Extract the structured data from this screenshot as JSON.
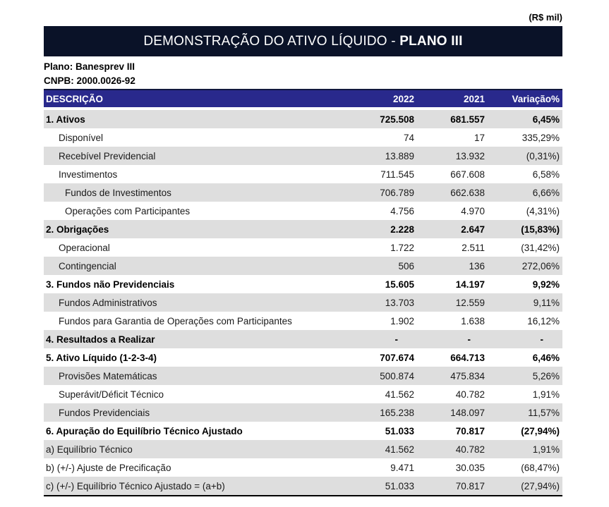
{
  "unit_label": "(R$ mil)",
  "title": {
    "prefix": "DEMONSTRAÇÃO DO ATIVO LÍQUIDO - ",
    "bold": "PLANO III"
  },
  "plan_info": {
    "plan_line": "Plano: Banesprev III",
    "cnpb_line": "CNPB: 2000.0026-92"
  },
  "colors": {
    "title_bar_bg": "#0A1228",
    "column_header_bg": "#29298C",
    "column_header_top_border": "#10173D",
    "alt_row_bg": "#DEDEDE",
    "header_text": "#FFFFFF",
    "body_text": "#1A1A1A",
    "bottom_border": "#000000"
  },
  "table": {
    "columns": [
      "DESCRIÇÃO",
      "2022",
      "2021",
      "Variação%"
    ],
    "rows": [
      {
        "label": "1. Ativos",
        "v2022": "725.508",
        "v2021": "681.557",
        "variation": "6,45%",
        "bold": true,
        "indent": 0
      },
      {
        "label": "Disponível",
        "v2022": "74",
        "v2021": "17",
        "variation": "335,29%",
        "bold": false,
        "indent": 1
      },
      {
        "label": "Recebível Previdencial",
        "v2022": "13.889",
        "v2021": "13.932",
        "variation": "(0,31%)",
        "bold": false,
        "indent": 1
      },
      {
        "label": "Investimentos",
        "v2022": "711.545",
        "v2021": "667.608",
        "variation": "6,58%",
        "bold": false,
        "indent": 1
      },
      {
        "label": "Fundos de Investimentos",
        "v2022": "706.789",
        "v2021": "662.638",
        "variation": "6,66%",
        "bold": false,
        "indent": 2
      },
      {
        "label": "Operações com Participantes",
        "v2022": "4.756",
        "v2021": "4.970",
        "variation": "(4,31%)",
        "bold": false,
        "indent": 2
      },
      {
        "label": "2. Obrigações",
        "v2022": "2.228",
        "v2021": "2.647",
        "variation": "(15,83%)",
        "bold": true,
        "indent": 0
      },
      {
        "label": "Operacional",
        "v2022": "1.722",
        "v2021": "2.511",
        "variation": "(31,42%)",
        "bold": false,
        "indent": 1
      },
      {
        "label": "Contingencial",
        "v2022": "506",
        "v2021": "136",
        "variation": "272,06%",
        "bold": false,
        "indent": 1
      },
      {
        "label": "3. Fundos não Previdenciais",
        "v2022": "15.605",
        "v2021": "14.197",
        "variation": "9,92%",
        "bold": true,
        "indent": 0
      },
      {
        "label": "Fundos Administrativos",
        "v2022": "13.703",
        "v2021": "12.559",
        "variation": "9,11%",
        "bold": false,
        "indent": 1
      },
      {
        "label": "Fundos para Garantia de Operações com Participantes",
        "v2022": "1.902",
        "v2021": "1.638",
        "variation": "16,12%",
        "bold": false,
        "indent": 1
      },
      {
        "label": "4. Resultados a Realizar",
        "v2022": "-",
        "v2021": "-",
        "variation": "-",
        "bold": true,
        "indent": 0
      },
      {
        "label": "5. Ativo Líquido (1-2-3-4)",
        "v2022": "707.674",
        "v2021": "664.713",
        "variation": "6,46%",
        "bold": true,
        "indent": 0
      },
      {
        "label": "Provisões Matemáticas",
        "v2022": "500.874",
        "v2021": "475.834",
        "variation": "5,26%",
        "bold": false,
        "indent": 1
      },
      {
        "label": "Superávit/Déficit Técnico",
        "v2022": "41.562",
        "v2021": "40.782",
        "variation": "1,91%",
        "bold": false,
        "indent": 1
      },
      {
        "label": "Fundos Previdenciais",
        "v2022": "165.238",
        "v2021": "148.097",
        "variation": "11,57%",
        "bold": false,
        "indent": 1
      },
      {
        "label": "6. Apuração do Equilíbrio Técnico Ajustado",
        "v2022": "51.033",
        "v2021": "70.817",
        "variation": "(27,94%)",
        "bold": true,
        "indent": 0
      },
      {
        "label": "a) Equilíbrio Técnico",
        "v2022": "41.562",
        "v2021": "40.782",
        "variation": "1,91%",
        "bold": false,
        "indent": 0
      },
      {
        "label": "b) (+/-) Ajuste de Precificação",
        "v2022": "9.471",
        "v2021": "30.035",
        "variation": "(68,47%)",
        "bold": false,
        "indent": 0
      },
      {
        "label": "c) (+/-) Equilíbrio Técnico Ajustado = (a+b)",
        "v2022": "51.033",
        "v2021": "70.817",
        "variation": "(27,94%)",
        "bold": false,
        "indent": 0
      }
    ]
  }
}
